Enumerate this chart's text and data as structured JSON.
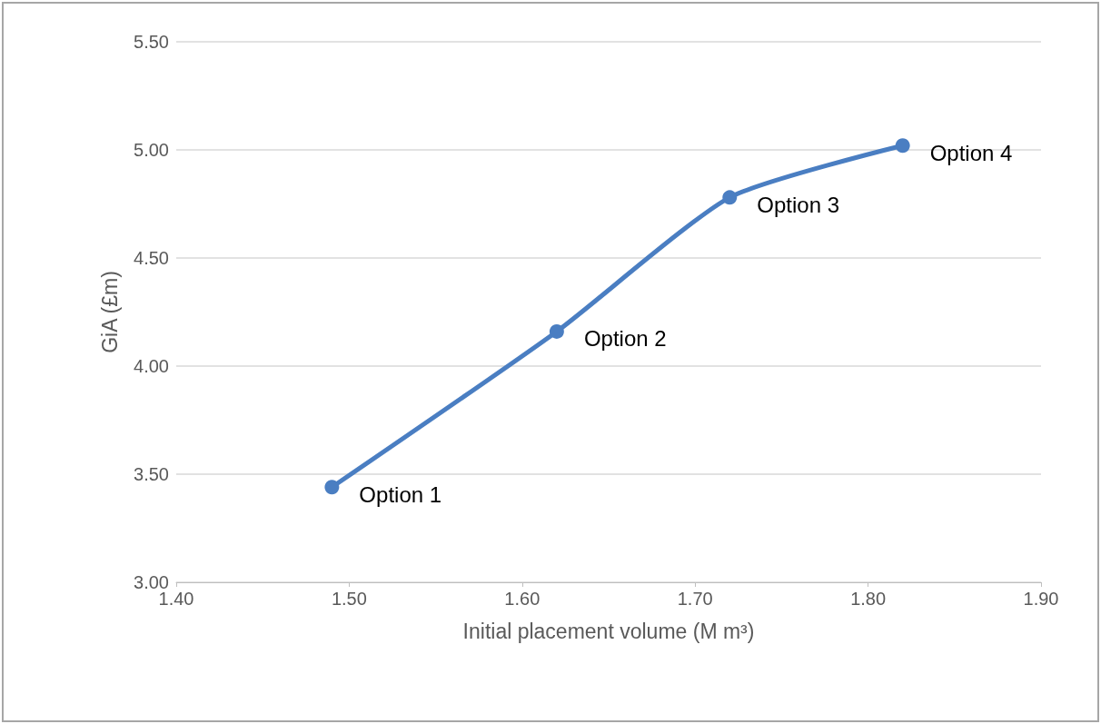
{
  "chart_data": {
    "type": "line",
    "xlabel": "Initial placement volume (M m³)",
    "ylabel": "GiA (£m)",
    "x": [
      1.49,
      1.62,
      1.72,
      1.82
    ],
    "series": [
      {
        "color": "#4a7ec2",
        "values": [
          3.44,
          4.16,
          4.78,
          5.02
        ]
      }
    ],
    "xlim": [
      1.4,
      1.9
    ],
    "xticks": [
      {
        "value": 1.4,
        "label": "1.40"
      },
      {
        "value": 1.5,
        "label": "1.50"
      },
      {
        "value": 1.6,
        "label": "1.60"
      },
      {
        "value": 1.7,
        "label": "1.70"
      },
      {
        "value": 1.8,
        "label": "1.80"
      },
      {
        "value": 1.9,
        "label": "1.90"
      }
    ],
    "ylim": [
      3,
      5.5
    ],
    "yticks": [
      {
        "value": 3,
        "label": "3.00"
      },
      {
        "value": 3.5,
        "label": "3.50"
      },
      {
        "value": 4,
        "label": "4.00"
      },
      {
        "value": 4.5,
        "label": "4.50"
      },
      {
        "value": 5,
        "label": "5.00"
      },
      {
        "value": 5.5,
        "label": "5.50"
      }
    ],
    "grid": "y",
    "marker": "circle",
    "line_style": "solid",
    "annotations": [
      {
        "text": "Option 1",
        "x": 1.49,
        "y": 3.44
      },
      {
        "text": "Option 2",
        "x": 1.62,
        "y": 4.16
      },
      {
        "text": "Option 3",
        "x": 1.72,
        "y": 4.78
      },
      {
        "text": "Option 4",
        "x": 1.82,
        "y": 5.02
      }
    ]
  }
}
